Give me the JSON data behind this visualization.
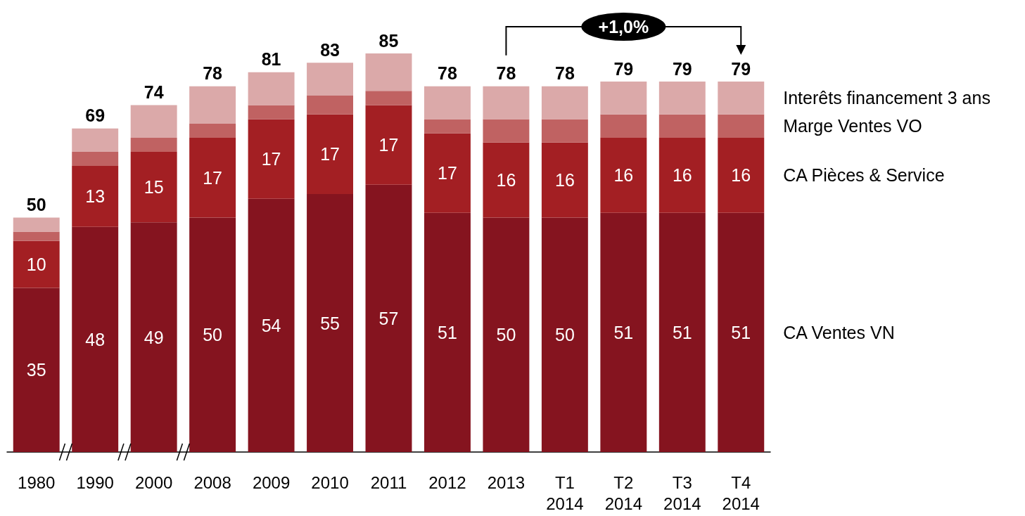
{
  "chart_data": {
    "type": "bar",
    "stacked": true,
    "legend": "right",
    "categories": [
      "1980",
      "1990",
      "2000",
      "2008",
      "2009",
      "2010",
      "2011",
      "2012",
      "2013",
      "T1\n2014",
      "T2\n2014",
      "T3\n2014",
      "T4\n2014"
    ],
    "series": [
      {
        "name": "CA Ventes VN",
        "color": "#85141f",
        "values": [
          35,
          48,
          49,
          50,
          54,
          55,
          57,
          51,
          50,
          50,
          51,
          51,
          51
        ],
        "value_labels": [
          "35",
          "48",
          "49",
          "50",
          "54",
          "55",
          "57",
          "51",
          "50",
          "50",
          "51",
          "51",
          "51"
        ]
      },
      {
        "name": "CA Pièces & Service",
        "color": "#a31f23",
        "values": [
          10,
          13,
          15,
          17,
          17,
          17,
          17,
          17,
          16,
          16,
          16,
          16,
          16
        ],
        "value_labels": [
          "10",
          "13",
          "15",
          "17",
          "17",
          "17",
          "17",
          "17",
          "16",
          "16",
          "16",
          "16",
          "16"
        ]
      },
      {
        "name": "Marge Ventes VO",
        "color": "#c06262",
        "values": [
          2,
          3,
          3,
          3,
          3,
          4,
          3,
          3,
          5,
          5,
          5,
          5,
          5
        ]
      },
      {
        "name": "Interêts financement 3 ans",
        "color": "#dba9a9",
        "values": [
          3,
          5,
          7,
          8,
          7,
          7,
          8,
          7,
          7,
          7,
          7,
          7,
          7
        ]
      }
    ],
    "totals": [
      "50",
      "69",
      "74",
      "78",
      "81",
      "83",
      "85",
      "78",
      "78",
      "78",
      "79",
      "79",
      "79"
    ],
    "annotations": [
      "+1,0%"
    ]
  }
}
